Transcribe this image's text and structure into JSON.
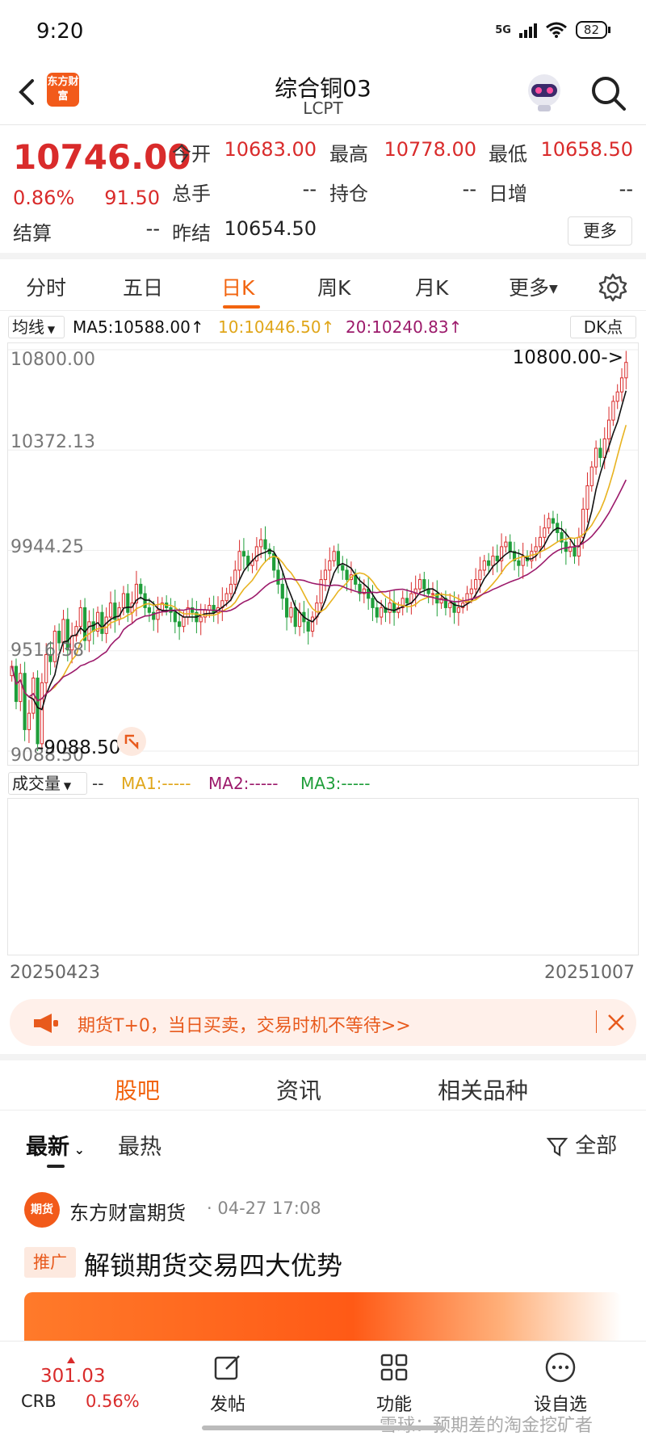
{
  "status": {
    "time": "9:20",
    "network": "5G",
    "battery": "82"
  },
  "header": {
    "logo_text": "东方财富",
    "title": "综合铜03",
    "subtitle": "LCPT"
  },
  "quote": {
    "price": "10746.00",
    "pct": "0.86%",
    "change": "91.50",
    "open_label": "今开",
    "open": "10683.00",
    "high_label": "最高",
    "high": "10778.00",
    "low_label": "最低",
    "low": "10658.50",
    "volume_label": "总手",
    "volume": "--",
    "oi_label": "持仓",
    "oi": "--",
    "daily_inc_label": "日增",
    "daily_inc": "--",
    "settle_label": "结算",
    "settle": "--",
    "prev_settle_label": "昨结",
    "prev_settle": "10654.50",
    "more": "更多"
  },
  "tabs": [
    "分时",
    "五日",
    "日K",
    "周K",
    "月K",
    "更多"
  ],
  "active_tab": "日K",
  "ma_bar": {
    "select": "均线",
    "ma5": "MA5:10588.00↑",
    "ma10": "10:10446.50↑",
    "ma20": "20:10240.83↑",
    "dk": "DK点"
  },
  "chart_labels": {
    "y1": "10800.00",
    "y2": "10372.13",
    "y3": "9944.25",
    "y4": "9516.38",
    "y5": "9088.50",
    "max_marker": "10800.00->",
    "min_marker": "-9088.50"
  },
  "chart_data": {
    "type": "candlestick",
    "x_start": "20250423",
    "x_end": "20251007",
    "ylim": [
      9088.5,
      10800.0
    ],
    "yticks": [
      10800.0,
      10372.13,
      9944.25,
      9516.38,
      9088.5
    ],
    "closes": [
      9450,
      9300,
      9420,
      9180,
      9250,
      9400,
      9120,
      9380,
      9500,
      9470,
      9600,
      9550,
      9650,
      9520,
      9580,
      9620,
      9700,
      9560,
      9640,
      9600,
      9680,
      9590,
      9660,
      9720,
      9650,
      9700,
      9760,
      9680,
      9720,
      9800,
      9760,
      9700,
      9680,
      9650,
      9690,
      9720,
      9700,
      9680,
      9640,
      9620,
      9660,
      9700,
      9680,
      9640,
      9660,
      9690,
      9710,
      9680,
      9700,
      9730,
      9760,
      9800,
      9860,
      9940,
      9920,
      9880,
      9900,
      9960,
      9990,
      9950,
      9930,
      9860,
      9800,
      9740,
      9660,
      9700,
      9620,
      9680,
      9640,
      9600,
      9660,
      9720,
      9820,
      9860,
      9900,
      9940,
      9880,
      9860,
      9820,
      9840,
      9800,
      9760,
      9780,
      9740,
      9700,
      9660,
      9700,
      9680,
      9720,
      9680,
      9700,
      9740,
      9720,
      9760,
      9780,
      9820,
      9780,
      9760,
      9760,
      9720,
      9740,
      9700,
      9720,
      9680,
      9700,
      9720,
      9760,
      9780,
      9820,
      9860,
      9900,
      9880,
      9920,
      9900,
      9960,
      9980,
      9940,
      9900,
      9880,
      9920,
      9900,
      9940,
      9960,
      10000,
      10040,
      10080,
      10060,
      10020,
      9980,
      9940,
      9960,
      9920,
      10000,
      10120,
      10220,
      10300,
      10380,
      10340,
      10420,
      10500,
      10580,
      10620,
      10680,
      10746
    ]
  },
  "volume_bar": {
    "select": "成交量",
    "dash": "--",
    "ma1": "MA1:-----",
    "ma2": "MA2:-----",
    "ma3": "MA3:-----"
  },
  "promo": {
    "text": "期货T+0，当日买卖，交易时机不等待>>"
  },
  "section_tabs": [
    "股吧",
    "资讯",
    "相关品种"
  ],
  "filter": {
    "latest": "最新",
    "hot": "最热",
    "all": "全部"
  },
  "post": {
    "avatar_text": "期货",
    "author": "东方财富期货",
    "time": "· 04-27 17:08",
    "tag": "推广",
    "title": "解锁期货交易四大优势"
  },
  "bottom": {
    "crb_value": "301.03",
    "crb_name": "CRB",
    "crb_pct": "0.56%",
    "post_label": "发帖",
    "func_label": "功能",
    "watch_label": "设自选",
    "watermark": "雪球：预期差的淘金挖矿者"
  },
  "colors": {
    "up": "#d92b2b",
    "down": "#1f9e3a",
    "ma5": "#111111",
    "ma10": "#e8b320",
    "ma20": "#9c1a6b",
    "accent": "#f2640f"
  }
}
